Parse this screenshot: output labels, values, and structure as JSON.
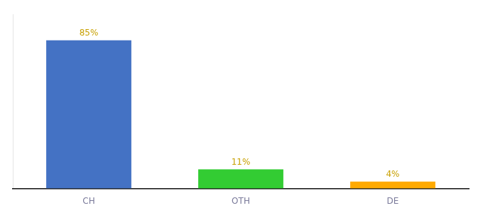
{
  "chart_data": {
    "type": "bar",
    "categories": [
      "CH",
      "OTH",
      "DE"
    ],
    "values": [
      85,
      11,
      4
    ],
    "value_labels": [
      "85%",
      "11%",
      "4%"
    ],
    "colors": [
      "#4472c4",
      "#33cc33",
      "#ffaa00"
    ],
    "ylim": [
      0,
      100
    ],
    "grid": false,
    "data_labels": true,
    "tick_labels": "x"
  }
}
